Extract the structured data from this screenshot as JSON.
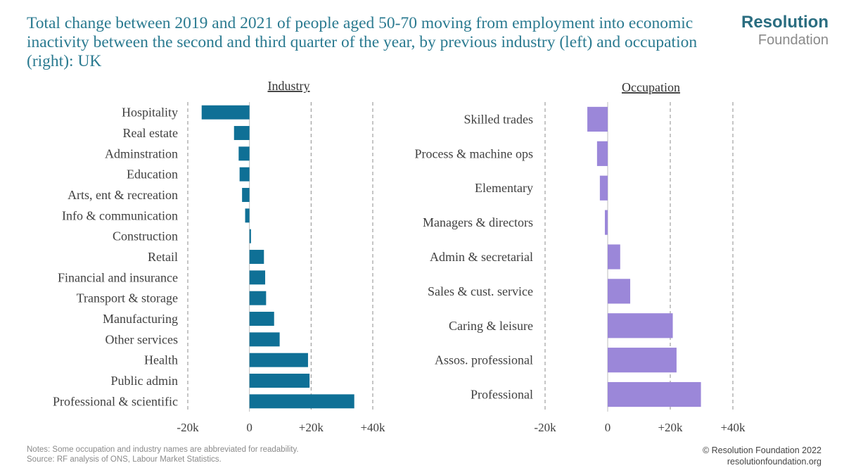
{
  "title": "Total change between 2019 and 2021 of people aged 50-70 moving from employment into economic inactivity between the second and third quarter of the year, by previous industry (left) and occupation (right): UK",
  "logo": {
    "line1": "Resolution",
    "line2": "Foundation"
  },
  "notes": {
    "line1": "Notes: Some occupation and industry names are abbreviated for readability.",
    "line2": "Source: RF analysis of ONS, Labour Market Statistics."
  },
  "copyright": {
    "line1": "© Resolution Foundation 2022",
    "line2": "resolutionfoundation.org"
  },
  "colors": {
    "industry_bar": "#0f7096",
    "occupation_bar": "#9b87d9",
    "title": "#2a7a90"
  },
  "chart_data": [
    {
      "type": "bar",
      "orientation": "horizontal",
      "title": "Industry",
      "categories": [
        "Hospitality",
        "Real estate",
        "Adminstration",
        "Education",
        "Arts, ent & recreation",
        "Info & communication",
        "Construction",
        "Retail",
        "Financial and insurance",
        "Transport & storage",
        "Manufacturing",
        "Other services",
        "Health",
        "Public admin",
        "Professional & scientific"
      ],
      "values": [
        -15500,
        -5000,
        -3500,
        -3200,
        -2400,
        -1400,
        500,
        4700,
        5100,
        5400,
        8000,
        9800,
        19000,
        19500,
        34000
      ],
      "xlim": [
        -20000,
        40000
      ],
      "ticks": [
        -20000,
        0,
        20000,
        40000
      ],
      "tick_labels": [
        "-20k",
        "0",
        "+20k",
        "+40k"
      ],
      "grid": "vertical dashed at -20k, +20k, +40k"
    },
    {
      "type": "bar",
      "orientation": "horizontal",
      "title": "Occupation",
      "categories": [
        "Skilled trades",
        "Process & machine ops",
        "Elementary",
        "Managers & directors",
        "Admin & secretarial",
        "Sales & cust. service",
        "Caring & leisure",
        "Assos. professional",
        "Professional"
      ],
      "values": [
        -6500,
        -3400,
        -2500,
        -900,
        4000,
        7200,
        20800,
        22000,
        29800
      ],
      "xlim": [
        -20000,
        40000
      ],
      "ticks": [
        -20000,
        0,
        20000,
        40000
      ],
      "tick_labels": [
        "-20k",
        "0",
        "+20k",
        "+40k"
      ],
      "grid": "vertical dashed at -20k, +20k, +40k"
    }
  ]
}
